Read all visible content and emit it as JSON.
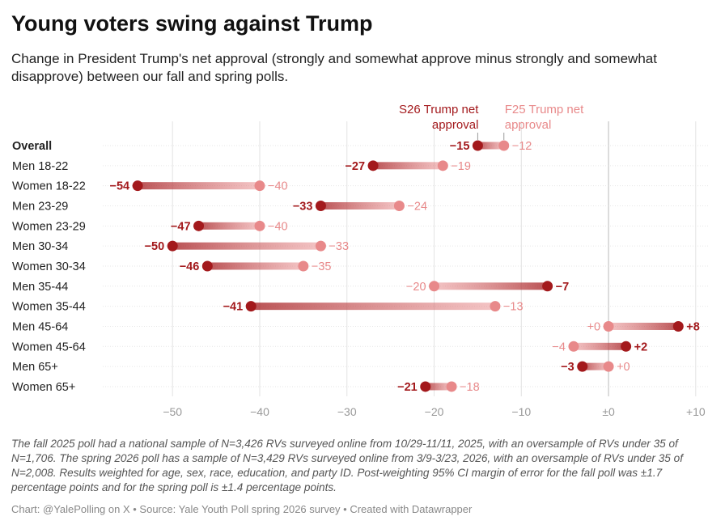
{
  "title": "Young voters swing against Trump",
  "subtitle": "Change in President Trump's net approval (strongly and somewhat approve minus strongly and somewhat disapprove) between our fall and spring polls.",
  "notes": "The fall 2025 poll had a national sample of N=3,426 RVs surveyed online from 10/29-11/11, 2025, with an oversample of RVs under 35 of N=1,706. The spring 2026 poll has a sample of N=3,429 RVs surveyed online from 3/9-3/23, 2026, with an oversample of RVs under 35 of N=2,008. Results weighted for age, sex, race, education, and party ID. Post-weighting 95% CI margin of error for the fall poll was ±1.7 percentage points and for the spring poll is ±1.4 percentage points.",
  "footer": "Chart: @YalePolling on X • Source: Yale Youth Poll spring 2026 survey • Created with Datawrapper",
  "chart_data": {
    "type": "dumbbell",
    "xlim": [
      -58,
      11.5
    ],
    "grid": true,
    "x_ticks": [
      -50,
      -40,
      -30,
      -20,
      -10,
      0,
      10
    ],
    "x_tick_labels": [
      "−50",
      "−40",
      "−30",
      "−20",
      "−10",
      "±0",
      "+10"
    ],
    "colors": {
      "S26": "#a3191c",
      "F25": "#e8898a"
    },
    "series": [
      {
        "name": "S26 Trump net approval",
        "key": "S26"
      },
      {
        "name": "F25 Trump net approval",
        "key": "F25"
      }
    ],
    "rows": [
      {
        "label": "Overall",
        "bold": true,
        "S26": -15,
        "F25": -12
      },
      {
        "label": "Men 18-22",
        "S26": -27,
        "F25": -19
      },
      {
        "label": "Women 18-22",
        "S26": -54,
        "F25": -40
      },
      {
        "label": "Men 23-29",
        "S26": -33,
        "F25": -24
      },
      {
        "label": "Women 23-29",
        "S26": -47,
        "F25": -40
      },
      {
        "label": "Men 30-34",
        "S26": -50,
        "F25": -33
      },
      {
        "label": "Women 30-34",
        "S26": -46,
        "F25": -35
      },
      {
        "label": "Men 35-44",
        "S26": -7,
        "F25": -20
      },
      {
        "label": "Women 35-44",
        "S26": -41,
        "F25": -13
      },
      {
        "label": "Men 45-64",
        "S26": 8,
        "F25": 0
      },
      {
        "label": "Women 45-64",
        "S26": 2,
        "F25": -4
      },
      {
        "label": "Men 65+",
        "S26": -3,
        "F25": 0
      },
      {
        "label": "Women 65+",
        "S26": -21,
        "F25": -18
      }
    ]
  }
}
